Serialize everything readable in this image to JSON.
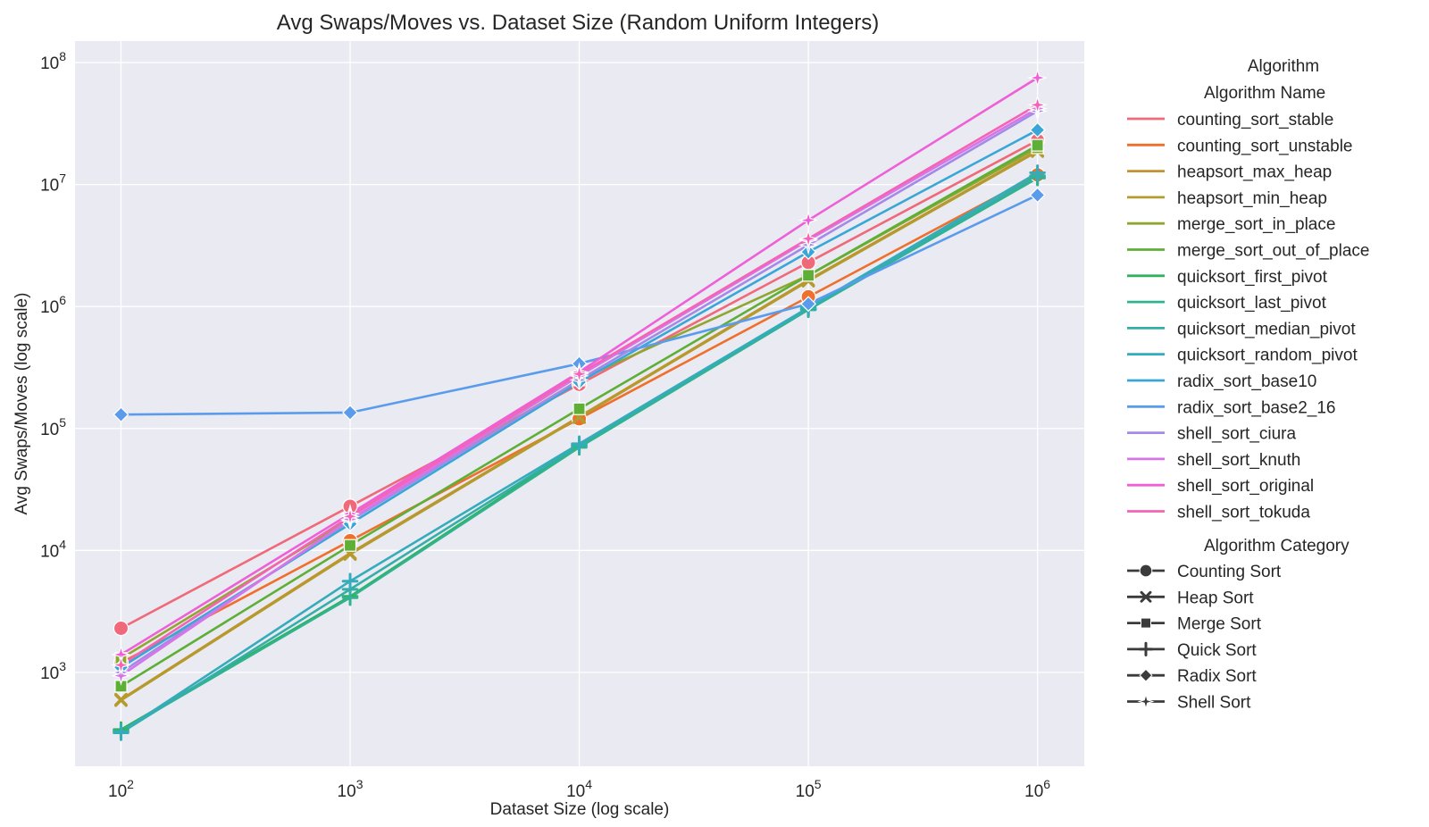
{
  "chart_data": {
    "type": "line",
    "title": "Avg Swaps/Moves vs. Dataset Size (Random Uniform Integers)",
    "xlabel": "Dataset Size (log scale)",
    "ylabel": "Avg Swaps/Moves (log scale)",
    "xscale": "log",
    "yscale": "log",
    "xlim": [
      63,
      1600000
    ],
    "ylim": [
      170,
      150000000
    ],
    "grid": true,
    "x": [
      100,
      1000,
      10000,
      100000,
      1000000
    ],
    "xticks": [
      {
        "value": 100,
        "base": "10",
        "exp": "2"
      },
      {
        "value": 1000,
        "base": "10",
        "exp": "3"
      },
      {
        "value": 10000,
        "base": "10",
        "exp": "4"
      },
      {
        "value": 100000,
        "base": "10",
        "exp": "5"
      },
      {
        "value": 1000000,
        "base": "10",
        "exp": "6"
      }
    ],
    "yticks": [
      {
        "value": 1000,
        "base": "10",
        "exp": "3"
      },
      {
        "value": 10000,
        "base": "10",
        "exp": "4"
      },
      {
        "value": 100000,
        "base": "10",
        "exp": "5"
      },
      {
        "value": 1000000,
        "base": "10",
        "exp": "6"
      },
      {
        "value": 10000000,
        "base": "10",
        "exp": "7"
      },
      {
        "value": 100000000,
        "base": "10",
        "exp": "8"
      }
    ],
    "legend": {
      "title": "Algorithm",
      "position": "right-outside",
      "name_heading": "Algorithm Name",
      "category_heading": "Algorithm Category",
      "categories": [
        {
          "name": "Counting Sort",
          "marker": "circle"
        },
        {
          "name": "Heap Sort",
          "marker": "x"
        },
        {
          "name": "Merge Sort",
          "marker": "square"
        },
        {
          "name": "Quick Sort",
          "marker": "plus"
        },
        {
          "name": "Radix Sort",
          "marker": "diamond"
        },
        {
          "name": "Shell Sort",
          "marker": "star"
        }
      ]
    },
    "series": [
      {
        "name": "counting_sort_stable",
        "category": "Counting Sort",
        "marker": "circle",
        "color": "#f0697a",
        "values": [
          2300,
          23000,
          230000,
          2300000,
          23000000
        ]
      },
      {
        "name": "counting_sort_unstable",
        "category": "Counting Sort",
        "marker": "circle",
        "color": "#ef6f2c",
        "values": [
          1200,
          12000,
          120000,
          1200000,
          12000000
        ]
      },
      {
        "name": "heapsort_max_heap",
        "category": "Heap Sort",
        "marker": "x",
        "color": "#c6912e",
        "values": [
          600,
          9500,
          125000,
          1650000,
          19000000
        ]
      },
      {
        "name": "heapsort_min_heap",
        "category": "Heap Sort",
        "marker": "x",
        "color": "#b39b2d",
        "values": [
          590,
          9300,
          123000,
          1620000,
          18700000
        ]
      },
      {
        "name": "merge_sort_in_place",
        "category": "Merge Sort",
        "marker": "square",
        "color": "#8fa72f",
        "values": [
          1300,
          18000,
          250000,
          1800000,
          20000000
        ]
      },
      {
        "name": "merge_sort_out_of_place",
        "category": "Merge Sort",
        "marker": "square",
        "color": "#5eaf36",
        "values": [
          770,
          11000,
          145000,
          1800000,
          21000000
        ]
      },
      {
        "name": "quicksort_first_pivot",
        "category": "Quick Sort",
        "marker": "plus",
        "color": "#2fb25b",
        "values": [
          340,
          4200,
          72000,
          950000,
          11500000
        ]
      },
      {
        "name": "quicksort_last_pivot",
        "category": "Quick Sort",
        "marker": "plus",
        "color": "#31b38f",
        "values": [
          330,
          4100,
          70000,
          940000,
          11300000
        ]
      },
      {
        "name": "quicksort_median_pivot",
        "category": "Quick Sort",
        "marker": "plus",
        "color": "#33afa7",
        "values": [
          320,
          4800,
          73000,
          960000,
          11800000
        ]
      },
      {
        "name": "quicksort_random_pivot",
        "category": "Quick Sort",
        "marker": "plus",
        "color": "#35acbc",
        "values": [
          325,
          5600,
          75000,
          980000,
          12500000
        ]
      },
      {
        "name": "radix_sort_base10",
        "category": "Radix Sort",
        "marker": "diamond",
        "color": "#38a6d7",
        "values": [
          1100,
          16500,
          240000,
          2800000,
          28000000
        ]
      },
      {
        "name": "radix_sort_base2_16",
        "category": "Radix Sort",
        "marker": "diamond",
        "color": "#5a9ceb",
        "values": [
          130000,
          135000,
          340000,
          1050000,
          8200000
        ]
      },
      {
        "name": "shell_sort_ciura",
        "category": "Shell Sort",
        "marker": "star",
        "color": "#a48ae8",
        "values": [
          1000,
          17500,
          250000,
          3200000,
          40000000
        ]
      },
      {
        "name": "shell_sort_knuth",
        "category": "Shell Sort",
        "marker": "star",
        "color": "#d774e8",
        "values": [
          940,
          18000,
          270000,
          3500000,
          42000000
        ]
      },
      {
        "name": "shell_sort_original",
        "category": "Shell Sort",
        "marker": "star",
        "color": "#ee5fd8",
        "values": [
          1400,
          20000,
          290000,
          5100000,
          75000000
        ]
      },
      {
        "name": "shell_sort_tokuda",
        "category": "Shell Sort",
        "marker": "star",
        "color": "#f564b4",
        "values": [
          1150,
          19000,
          280000,
          3600000,
          45000000
        ]
      }
    ]
  },
  "colors": {
    "plot_background": "#eaeaf2",
    "grid": "#ffffff",
    "category_marker": "#3b3b3b"
  }
}
